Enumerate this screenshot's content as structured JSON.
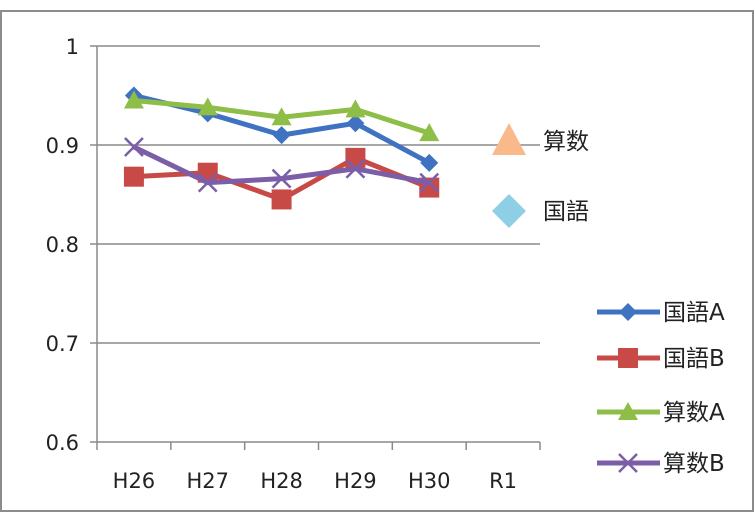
{
  "chart_data": {
    "type": "line",
    "categories": [
      "H26",
      "H27",
      "H28",
      "H29",
      "H30",
      "R1"
    ],
    "ylim": [
      0.6,
      1
    ],
    "yticks": [
      0.6,
      0.7,
      0.8,
      0.9,
      1
    ],
    "ytick_labels": [
      "0.6",
      "0.7",
      "0.8",
      "0.9",
      "1"
    ],
    "grid": true,
    "legend_position": "right",
    "series": [
      {
        "name": "国語A",
        "color": "#3f72c0",
        "marker": "diamond",
        "values": [
          0.95,
          0.932,
          0.91,
          0.922,
          0.882,
          null
        ]
      },
      {
        "name": "国語B",
        "color": "#c84a46",
        "marker": "square",
        "values": [
          0.868,
          0.872,
          0.845,
          0.887,
          0.857,
          null
        ]
      },
      {
        "name": "算数A",
        "color": "#8ebd48",
        "marker": "triangle",
        "values": [
          0.945,
          0.938,
          0.928,
          0.936,
          0.912,
          null
        ]
      },
      {
        "name": "算数B",
        "color": "#7b5ea7",
        "marker": "x",
        "values": [
          0.898,
          0.862,
          0.866,
          0.876,
          0.862,
          null
        ]
      }
    ],
    "annotations": [
      {
        "label": "算数",
        "marker": "triangle",
        "color": "#f9b98a"
      },
      {
        "label": "国語",
        "marker": "diamond",
        "color": "#8fcfe6"
      }
    ]
  }
}
